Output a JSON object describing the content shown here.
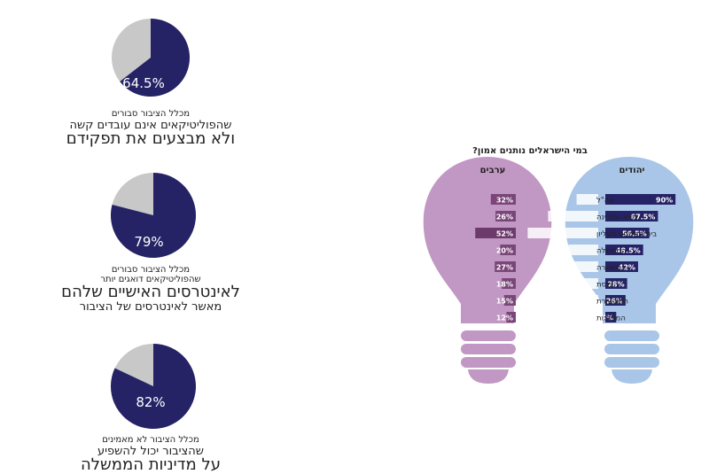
{
  "colors": {
    "navy": "#252365",
    "gray": "#c8c8c8",
    "purple_bulb": "#c197c3",
    "blue_bulb": "#a9c6e8",
    "purple_bar": "#7a4679",
    "purple_bar_dark": "#6d3a6c",
    "bulb_label_bg": "#ffffff"
  },
  "pies": [
    {
      "value": 64.5,
      "label": "64.5%",
      "line1": "מכלל הציבור סבורים",
      "line2": "שהפוליטיקאים אינם עובדים קשה",
      "line3": "ולא מבצעים את תפקידם"
    },
    {
      "value": 79,
      "label": "79%",
      "line1": "מכלל הציבור סבורים",
      "line2": "שהפוליטיקאים דואגים יותר",
      "line3": "לאינטרסים האישיים שלהם",
      "line4": "מאשר לאינטרסים של הציבור"
    },
    {
      "value": 82,
      "label": "82%",
      "line1": "מכלל הציבור לא מאמינים",
      "line2": "שהציבור יכול להשפיע",
      "line3": "על מדיניות הממשלה"
    }
  ],
  "chart_data": [
    {
      "type": "pie",
      "values": [
        64.5,
        35.5
      ],
      "labels": [
        "64.5%",
        ""
      ]
    },
    {
      "type": "pie",
      "values": [
        79,
        21
      ],
      "labels": [
        "79%",
        ""
      ]
    },
    {
      "type": "pie",
      "values": [
        82,
        18
      ],
      "labels": [
        "82%",
        ""
      ]
    },
    {
      "type": "bar",
      "title": "במי הישראלים נותנים אמון?",
      "categories": [
        "צה\"ל",
        "נשיא המדינה",
        "בית המשפט העליון",
        "הממשלה",
        "המשטרה",
        "הכנסת",
        "התקשורת",
        "המפלגות"
      ],
      "series": [
        {
          "name": "ערבים",
          "values": [
            32,
            26,
            52,
            20,
            27,
            18,
            15,
            12
          ],
          "labels": [
            "32%",
            "26%",
            "52%",
            "20%",
            "27%",
            "18%",
            "15%",
            "12%"
          ]
        },
        {
          "name": "יהודים",
          "values": [
            90,
            67.5,
            56.5,
            48.5,
            42,
            28,
            26,
            14
          ],
          "labels": [
            "90%",
            "67.5%",
            "56.5%",
            "48.5%",
            "42%",
            "28%",
            "26%",
            "14%"
          ]
        }
      ]
    }
  ]
}
